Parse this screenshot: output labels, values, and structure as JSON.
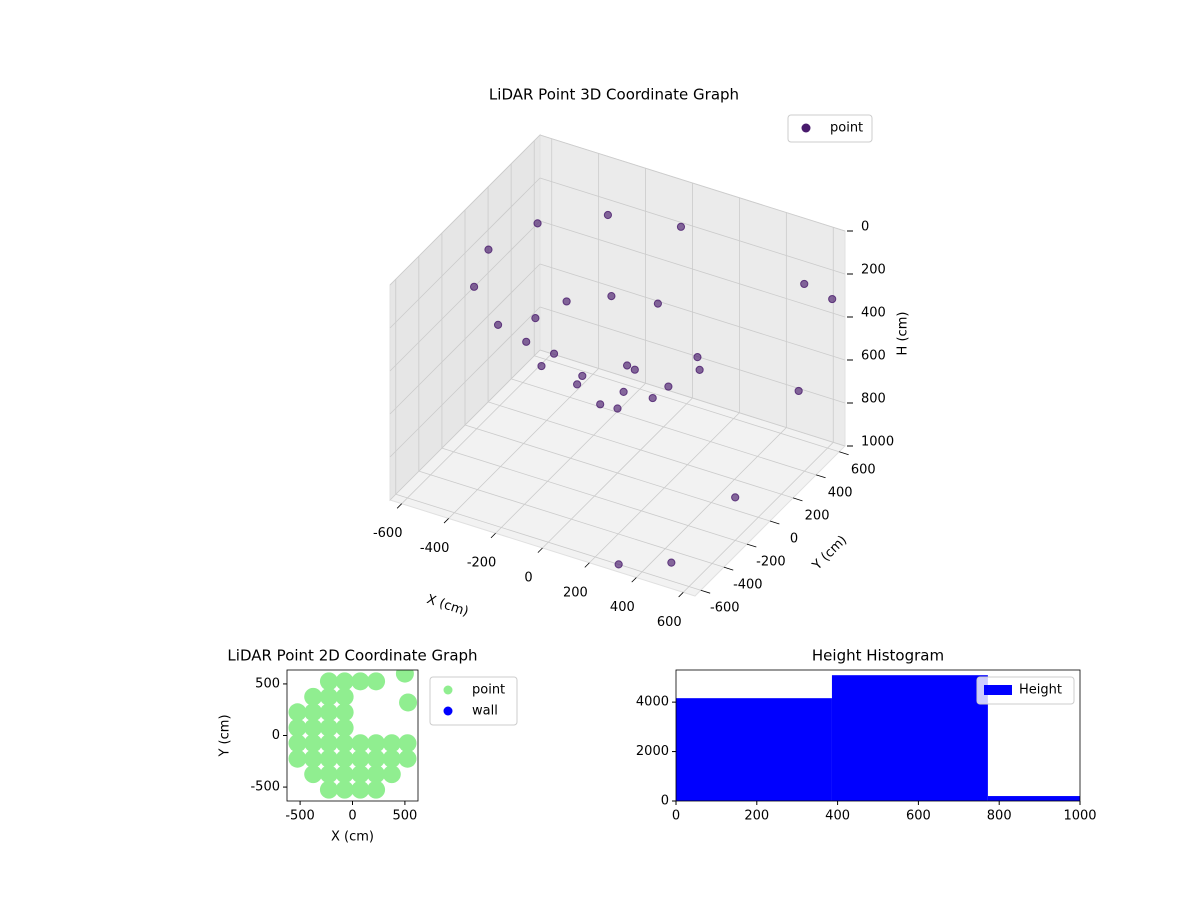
{
  "chart_data": [
    {
      "type": "scatter3d",
      "title": "LiDAR Point 3D Coordinate Graph",
      "xlabel": "X (cm)",
      "ylabel": "Y (cm)",
      "zlabel": "H (cm)",
      "xlim": [
        -650,
        650
      ],
      "ylim": [
        -650,
        650
      ],
      "zlim": [
        1000,
        0
      ],
      "xticks": [
        -600,
        -400,
        -200,
        0,
        200,
        400,
        600
      ],
      "yticks": [
        -600,
        -400,
        -200,
        0,
        200,
        400,
        600
      ],
      "zticks": [
        0,
        200,
        400,
        600,
        800,
        1000
      ],
      "grid": true,
      "legend": "upper right",
      "series": [
        {
          "name": "point",
          "color": "#481a6c",
          "x": [
            0,
            -275,
            -476,
            -550,
            -476,
            -275,
            0,
            275,
            476,
            350,
            0,
            -175,
            -303,
            -350,
            -303,
            -175,
            0,
            175,
            303,
            150,
            0,
            -150,
            0,
            0,
            550,
            600,
            600,
            500,
            300,
            620
          ],
          "y": [
            550,
            476,
            275,
            0,
            -275,
            -476,
            -550,
            -476,
            -275,
            0,
            350,
            303,
            175,
            0,
            -175,
            -303,
            -350,
            -303,
            -175,
            0,
            150,
            0,
            -150,
            0,
            500,
            350,
            -200,
            -550,
            -600,
            600
          ],
          "z": [
            150,
            150,
            150,
            150,
            150,
            150,
            150,
            150,
            150,
            400,
            400,
            400,
            400,
            400,
            400,
            400,
            400,
            400,
            400,
            600,
            600,
            600,
            600,
            700,
            200,
            600,
            800,
            950,
            1000,
            300
          ]
        }
      ]
    },
    {
      "type": "scatter",
      "title": "LiDAR Point 2D Coordinate Graph",
      "xlabel": "X (cm)",
      "ylabel": "Y (cm)",
      "xlim": [
        -625,
        625
      ],
      "ylim": [
        -635,
        635
      ],
      "xticks": [
        -500,
        0,
        500
      ],
      "yticks": [
        -500,
        0,
        500
      ],
      "legend": "outside right",
      "series": [
        {
          "name": "point",
          "color": "#90ee90",
          "x": [
            -225,
            -75,
            75,
            225,
            -375,
            -225,
            -75,
            -525,
            -375,
            -225,
            -75,
            -525,
            -375,
            -225,
            -75,
            -525,
            -375,
            -225,
            -75,
            75,
            225,
            375,
            525,
            -525,
            -375,
            -225,
            -75,
            75,
            225,
            375,
            525,
            -375,
            -225,
            -75,
            75,
            225,
            375,
            -225,
            -75,
            75,
            225,
            500,
            530
          ],
          "y": [
            525,
            525,
            525,
            525,
            375,
            375,
            375,
            225,
            225,
            225,
            225,
            75,
            75,
            75,
            75,
            -75,
            -75,
            -75,
            -75,
            -75,
            -75,
            -75,
            -75,
            -225,
            -225,
            -225,
            -225,
            -225,
            -225,
            -225,
            -225,
            -375,
            -375,
            -375,
            -375,
            -375,
            -375,
            -525,
            -525,
            -525,
            -525,
            600,
            320
          ]
        },
        {
          "name": "wall",
          "color": "#0000ff",
          "x": [],
          "y": []
        }
      ]
    },
    {
      "type": "histogram",
      "title": "Height Histogram",
      "xlim": [
        0,
        1000
      ],
      "ylim": [
        0,
        5300
      ],
      "xticks": [
        0,
        200,
        400,
        600,
        800,
        1000
      ],
      "yticks": [
        0,
        2000,
        4000
      ],
      "legend": "upper right",
      "series": [
        {
          "name": "Height",
          "color": "#0000ff",
          "bins": [
            0,
            386,
            772,
            1158
          ],
          "counts": [
            4160,
            5090,
            200
          ]
        }
      ]
    }
  ]
}
